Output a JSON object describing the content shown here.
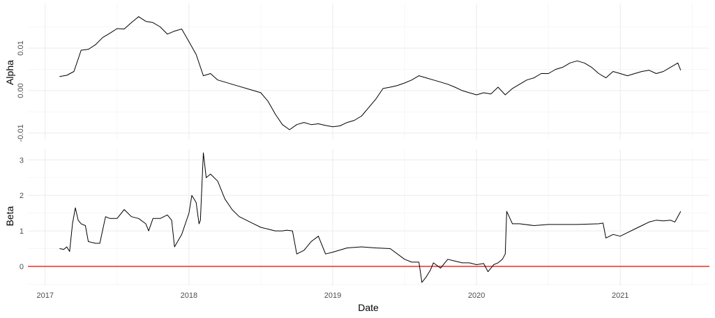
{
  "chart_data": [
    {
      "type": "line",
      "name": "alpha-panel",
      "ylabel": "Alpha",
      "ylim": [
        -0.0115,
        0.0205
      ],
      "y_ticks": [
        -0.01,
        0.0,
        0.01
      ],
      "y_tick_labels": [
        "-0.01",
        "0.00",
        "0.01"
      ],
      "grid": true,
      "series": [
        {
          "x": [
            2017.1,
            2017.15,
            2017.2,
            2017.25,
            2017.3,
            2017.35,
            2017.4,
            2017.45,
            2017.5,
            2017.55,
            2017.6,
            2017.65,
            2017.7,
            2017.75,
            2017.8,
            2017.85,
            2017.9,
            2017.95,
            2018.0,
            2018.05,
            2018.1,
            2018.15,
            2018.2,
            2018.25,
            2018.3,
            2018.35,
            2018.4,
            2018.45,
            2018.5,
            2018.55,
            2018.6,
            2018.65,
            2018.7,
            2018.75,
            2018.8,
            2018.85,
            2018.9,
            2018.95,
            2019.0,
            2019.05,
            2019.1,
            2019.15,
            2019.2,
            2019.25,
            2019.3,
            2019.35,
            2019.4,
            2019.45,
            2019.5,
            2019.55,
            2019.6,
            2019.65,
            2019.7,
            2019.75,
            2019.8,
            2019.85,
            2019.9,
            2019.95,
            2020.0,
            2020.05,
            2020.1,
            2020.15,
            2020.2,
            2020.25,
            2020.3,
            2020.35,
            2020.4,
            2020.45,
            2020.5,
            2020.55,
            2020.6,
            2020.65,
            2020.7,
            2020.75,
            2020.8,
            2020.85,
            2020.9,
            2020.95,
            2021.0,
            2021.05,
            2021.1,
            2021.15,
            2021.2,
            2021.25,
            2021.3,
            2021.35,
            2021.4,
            2021.42
          ],
          "values": [
            0.0033,
            0.0036,
            0.0045,
            0.0095,
            0.0097,
            0.0108,
            0.0125,
            0.0135,
            0.0146,
            0.0145,
            0.016,
            0.0174,
            0.0163,
            0.016,
            0.015,
            0.0133,
            0.014,
            0.0145,
            0.0115,
            0.0085,
            0.0035,
            0.004,
            0.0025,
            0.002,
            0.0015,
            0.001,
            0.0005,
            0.0,
            -0.0005,
            -0.0025,
            -0.0055,
            -0.008,
            -0.0092,
            -0.008,
            -0.0075,
            -0.008,
            -0.0078,
            -0.0082,
            -0.0085,
            -0.0083,
            -0.0075,
            -0.007,
            -0.006,
            -0.004,
            -0.002,
            0.0005,
            0.0008,
            0.0012,
            0.0018,
            0.0025,
            0.0035,
            0.003,
            0.0025,
            0.002,
            0.0015,
            0.0008,
            0.0,
            -0.0005,
            -0.001,
            -0.0005,
            -0.0008,
            0.0008,
            -0.001,
            0.0005,
            0.0015,
            0.0025,
            0.003,
            0.004,
            0.004,
            0.005,
            0.0055,
            0.0065,
            0.007,
            0.0065,
            0.0055,
            0.004,
            0.003,
            0.0045,
            0.004,
            0.0035,
            0.004,
            0.0045,
            0.0048,
            0.004,
            0.0045,
            0.0055,
            0.0065,
            0.0048
          ]
        }
      ]
    },
    {
      "type": "line",
      "name": "beta-panel",
      "ylabel": "Beta",
      "xlabel": "Date",
      "ylim": [
        -0.55,
        3.3
      ],
      "y_ticks": [
        0,
        1,
        2,
        3
      ],
      "y_tick_labels": [
        "0",
        "1",
        "2",
        "3"
      ],
      "x_ticks": [
        2017,
        2018,
        2019,
        2020,
        2021
      ],
      "x_tick_labels": [
        "2017",
        "2018",
        "2019",
        "2020",
        "2021"
      ],
      "xlim": [
        2016.88,
        2021.62
      ],
      "reference_line": {
        "y": 0,
        "color": "#ee0000"
      },
      "grid": true,
      "series": [
        {
          "x": [
            2017.1,
            2017.13,
            2017.15,
            2017.17,
            2017.19,
            2017.21,
            2017.23,
            2017.25,
            2017.28,
            2017.3,
            2017.35,
            2017.38,
            2017.42,
            2017.45,
            2017.5,
            2017.55,
            2017.6,
            2017.65,
            2017.7,
            2017.72,
            2017.75,
            2017.8,
            2017.85,
            2017.88,
            2017.9,
            2017.95,
            2018.0,
            2018.02,
            2018.05,
            2018.07,
            2018.08,
            2018.1,
            2018.12,
            2018.15,
            2018.2,
            2018.25,
            2018.3,
            2018.35,
            2018.4,
            2018.45,
            2018.5,
            2018.55,
            2018.6,
            2018.65,
            2018.68,
            2018.72,
            2018.75,
            2018.8,
            2018.85,
            2018.9,
            2018.95,
            2019.0,
            2019.1,
            2019.2,
            2019.3,
            2019.4,
            2019.5,
            2019.55,
            2019.6,
            2019.62,
            2019.65,
            2019.68,
            2019.7,
            2019.75,
            2019.8,
            2019.85,
            2019.9,
            2019.95,
            2020.0,
            2020.05,
            2020.08,
            2020.12,
            2020.15,
            2020.18,
            2020.2,
            2020.21,
            2020.25,
            2020.3,
            2020.4,
            2020.5,
            2020.6,
            2020.7,
            2020.85,
            2020.88,
            2020.9,
            2020.95,
            2021.0,
            2021.05,
            2021.1,
            2021.15,
            2021.2,
            2021.25,
            2021.3,
            2021.35,
            2021.38,
            2021.42
          ],
          "values": [
            0.5,
            0.48,
            0.55,
            0.42,
            1.2,
            1.65,
            1.3,
            1.2,
            1.15,
            0.7,
            0.65,
            0.65,
            1.4,
            1.35,
            1.35,
            1.6,
            1.4,
            1.35,
            1.2,
            1.0,
            1.35,
            1.35,
            1.45,
            1.3,
            0.55,
            0.9,
            1.5,
            2.0,
            1.8,
            1.2,
            1.3,
            3.2,
            2.5,
            2.6,
            2.4,
            1.9,
            1.6,
            1.4,
            1.3,
            1.2,
            1.1,
            1.05,
            1.0,
            1.0,
            1.02,
            1.0,
            0.35,
            0.45,
            0.7,
            0.85,
            0.35,
            0.4,
            0.52,
            0.55,
            0.52,
            0.5,
            0.2,
            0.12,
            0.12,
            -0.45,
            -0.3,
            -0.1,
            0.1,
            -0.05,
            0.2,
            0.15,
            0.1,
            0.1,
            0.05,
            0.08,
            -0.15,
            0.05,
            0.1,
            0.2,
            0.35,
            1.55,
            1.2,
            1.2,
            1.15,
            1.18,
            1.18,
            1.18,
            1.2,
            1.22,
            0.8,
            0.9,
            0.85,
            0.95,
            1.05,
            1.15,
            1.25,
            1.3,
            1.28,
            1.3,
            1.25,
            1.55
          ]
        }
      ]
    }
  ]
}
